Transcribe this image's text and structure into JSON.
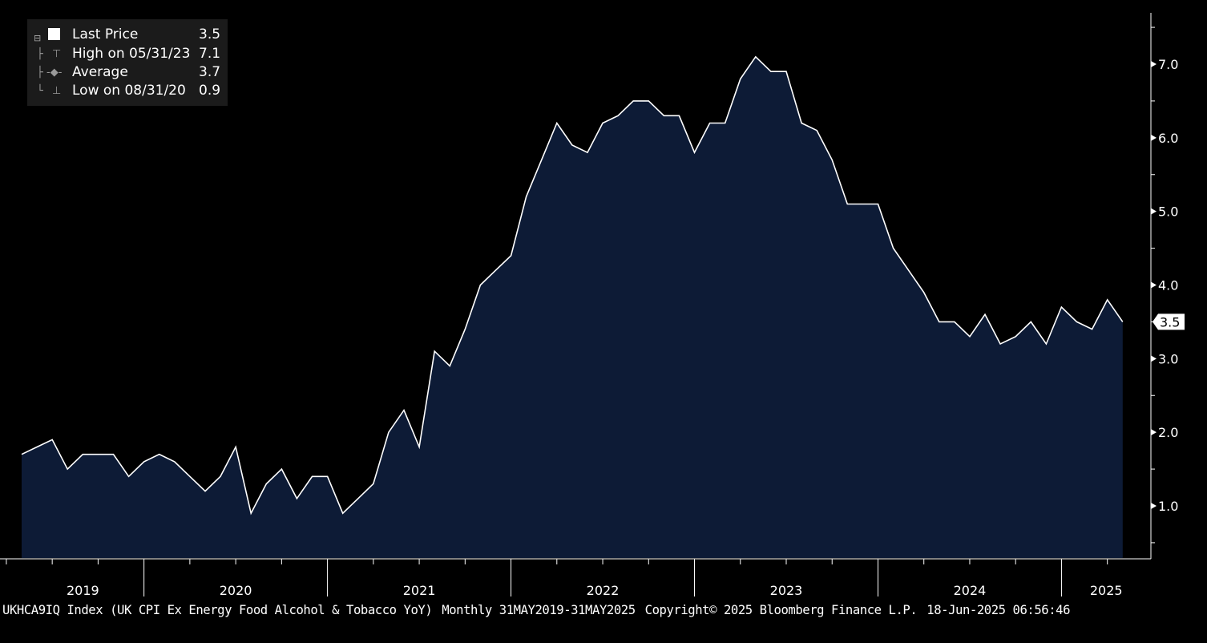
{
  "legend": {
    "rows": [
      {
        "name": "Last Price",
        "value": "3.5",
        "icon": "white-square-icon"
      },
      {
        "name": "High on 05/31/23",
        "value": "7.1",
        "icon": "high-marker-icon"
      },
      {
        "name": "Average",
        "value": "3.7",
        "icon": "average-marker-icon"
      },
      {
        "name": "Low on 08/31/20",
        "value": "0.9",
        "icon": "low-marker-icon"
      }
    ]
  },
  "last_value_label": "3.5",
  "footer": {
    "ticker": "UKHCA9IQ Index (UK CPI Ex Energy Food Alcohol & Tobacco YoY)",
    "range": "Monthly 31MAY2019-31MAY2025",
    "copyright": "Copyright© 2025 Bloomberg Finance L.P.",
    "timestamp": "18-Jun-2025 06:56:46"
  },
  "colors": {
    "background": "#000000",
    "area_fill": "#0d1b36",
    "line": "#ffffff",
    "legend_bg": "#1b1b1b"
  },
  "chart_data": {
    "type": "area",
    "x_start": "2019-05",
    "x_end": "2025-05",
    "x_frequency": "monthly",
    "values": [
      1.7,
      1.8,
      1.9,
      1.5,
      1.7,
      1.7,
      1.7,
      1.4,
      1.6,
      1.7,
      1.6,
      1.4,
      1.2,
      1.4,
      1.8,
      0.9,
      1.3,
      1.5,
      1.1,
      1.4,
      1.4,
      0.9,
      1.1,
      1.3,
      2.0,
      2.3,
      1.8,
      3.1,
      2.9,
      3.4,
      4.0,
      4.2,
      4.4,
      5.2,
      5.7,
      6.2,
      5.9,
      5.8,
      6.2,
      6.3,
      6.5,
      6.5,
      6.3,
      6.3,
      5.8,
      6.2,
      6.2,
      6.8,
      7.1,
      6.9,
      6.9,
      6.2,
      6.1,
      5.7,
      5.1,
      5.1,
      5.1,
      4.5,
      4.2,
      3.9,
      3.5,
      3.5,
      3.3,
      3.6,
      3.2,
      3.3,
      3.5,
      3.2,
      3.7,
      3.5,
      3.4,
      3.8,
      3.5
    ],
    "x_tick_labels": [
      "2019",
      "2020",
      "2021",
      "2022",
      "2023",
      "2024",
      "2025"
    ],
    "y_tick_labels": [
      "1.0",
      "2.0",
      "3.0",
      "4.0",
      "5.0",
      "6.0",
      "7.0"
    ],
    "y_ticks": [
      1.0,
      2.0,
      3.0,
      4.0,
      5.0,
      6.0,
      7.0
    ],
    "ylim": [
      0.3,
      7.8
    ],
    "y_axis_side": "right",
    "grid": false,
    "legend_position": "top-left"
  }
}
